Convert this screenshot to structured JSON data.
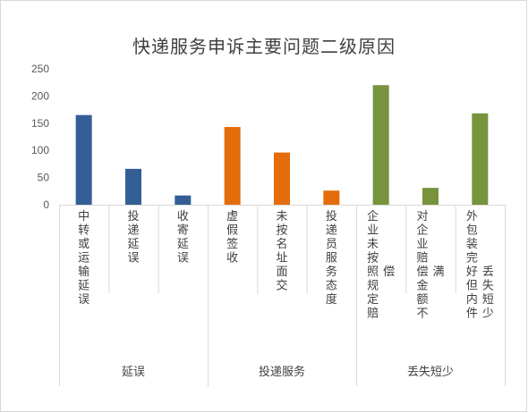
{
  "chart_data": {
    "type": "bar",
    "title": "快递服务申诉主要问题二级原因",
    "ylim": [
      0,
      250
    ],
    "yticks": [
      "0",
      "50",
      "100",
      "150",
      "200",
      "250"
    ],
    "grid": false,
    "legend": "none",
    "categories": [
      "中转或运输延误",
      "投递延误",
      "收寄延误",
      "虚假签收",
      "未按名址面交",
      "投递员服务态度",
      "企业未按照规定赔偿",
      "对企业赔偿金额不满",
      "外包装完好但内件丢失短少"
    ],
    "values": [
      165,
      66,
      17,
      143,
      96,
      26,
      220,
      31,
      168
    ],
    "groups": [
      {
        "name": "延误",
        "count": 3,
        "color": "#335f96"
      },
      {
        "name": "投递服务",
        "count": 3,
        "color": "#e46c0a"
      },
      {
        "name": "丢失短少",
        "count": 3,
        "color": "#77933c"
      }
    ]
  }
}
